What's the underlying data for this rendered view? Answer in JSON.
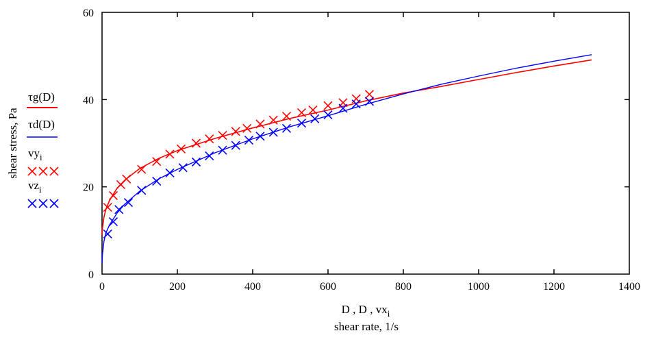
{
  "chart_data": {
    "type": "line",
    "xlabel_expr": "D , D , vx",
    "xlabel_expr_sub": "i",
    "xlabel_desc": "shear rate, 1/s",
    "ylabel": "shear stress, Pa",
    "xlim": [
      0,
      1400
    ],
    "ylim": [
      0,
      60
    ],
    "x_ticks": [
      0,
      200,
      400,
      600,
      800,
      1000,
      1200,
      1400
    ],
    "y_ticks": [
      0,
      20,
      40,
      60
    ],
    "x_tick_labels": [
      "0",
      "200",
      "400",
      "600",
      "800",
      "1000",
      "1200",
      "1400"
    ],
    "y_tick_labels": [
      "0",
      "20",
      "40",
      "60"
    ],
    "grid": false,
    "legend_position": "left",
    "series": [
      {
        "name": "τg(D)",
        "kind": "line",
        "color": "#ff0000",
        "x": [
          0,
          1,
          5,
          10,
          20,
          40,
          60,
          100,
          150,
          200,
          300,
          400,
          500,
          600,
          700,
          800,
          900,
          1000,
          1100,
          1200,
          1300
        ],
        "y": [
          9.0,
          10.5,
          13.0,
          14.8,
          16.9,
          19.7,
          21.5,
          24.2,
          26.5,
          28.3,
          31.1,
          33.5,
          35.7,
          37.6,
          39.7,
          41.5,
          43.0,
          44.6,
          46.2,
          47.7,
          49.1
        ]
      },
      {
        "name": "τd(D)",
        "kind": "line",
        "color": "#0000ff",
        "x": [
          0,
          1,
          5,
          10,
          20,
          40,
          60,
          100,
          150,
          200,
          300,
          400,
          500,
          600,
          700,
          800,
          900,
          1000,
          1100,
          1200,
          1300
        ],
        "y": [
          2.5,
          4.5,
          7.5,
          9.4,
          11.3,
          14.0,
          16.0,
          19.0,
          21.8,
          24.0,
          27.8,
          31.0,
          33.8,
          36.3,
          38.9,
          41.3,
          43.5,
          45.4,
          47.2,
          48.8,
          50.3
        ]
      },
      {
        "name": "vy",
        "name_sub": "i",
        "kind": "markers",
        "color": "#ff0000",
        "x": [
          15,
          30,
          50,
          65,
          105,
          145,
          180,
          210,
          250,
          285,
          320,
          355,
          385,
          420,
          455,
          490,
          530,
          560,
          600,
          640,
          675,
          710
        ],
        "y": [
          15.3,
          18.0,
          20.5,
          21.8,
          24.0,
          25.8,
          27.5,
          28.7,
          30.0,
          31.0,
          31.8,
          32.7,
          33.4,
          34.4,
          35.3,
          36.2,
          37.0,
          37.6,
          38.6,
          39.3,
          40.2,
          41.2
        ]
      },
      {
        "name": "vz",
        "name_sub": "i",
        "kind": "markers",
        "color": "#0000ff",
        "x": [
          15,
          30,
          45,
          70,
          105,
          145,
          180,
          215,
          250,
          285,
          320,
          355,
          390,
          420,
          455,
          490,
          530,
          565,
          600,
          640,
          675,
          710
        ],
        "y": [
          9.2,
          12.0,
          14.8,
          16.4,
          19.2,
          21.3,
          23.2,
          24.4,
          25.7,
          27.1,
          28.4,
          29.5,
          30.7,
          31.6,
          32.5,
          33.4,
          34.6,
          35.6,
          36.5,
          38.0,
          39.0,
          39.6
        ]
      }
    ]
  }
}
